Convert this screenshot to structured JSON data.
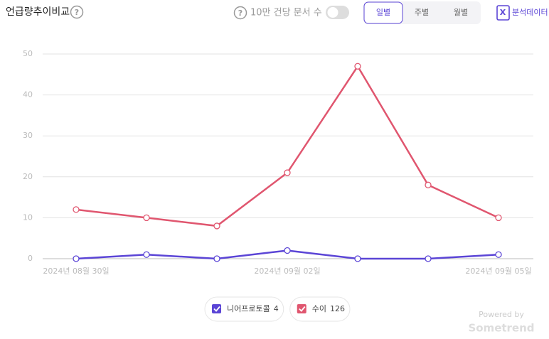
{
  "header": {
    "title": "언급량추이비교",
    "toggle_label": "10만 건당 문서 수",
    "period_options": [
      "일별",
      "주별",
      "월별"
    ],
    "export_label": "분석데이터"
  },
  "chart_data": {
    "type": "line",
    "categories": [
      "2024년 08월 30일",
      null,
      null,
      "2024년 09월 02일",
      null,
      null,
      "2024년 09월 05일"
    ],
    "series": [
      {
        "name": "니어프로토콜",
        "color": "#5b45d6",
        "values": [
          0,
          1,
          0,
          2,
          0,
          0,
          1
        ]
      },
      {
        "name": "수이",
        "color": "#e0566f",
        "values": [
          12,
          10,
          8,
          21,
          47,
          18,
          10
        ]
      }
    ],
    "legend_totals": [
      4,
      126
    ],
    "ylim": [
      0,
      50
    ],
    "yticks": [
      0,
      10,
      20,
      30,
      40,
      50
    ],
    "grid": true
  },
  "footer": {
    "powered_by": "Powered by",
    "brand": "Sometrend"
  }
}
